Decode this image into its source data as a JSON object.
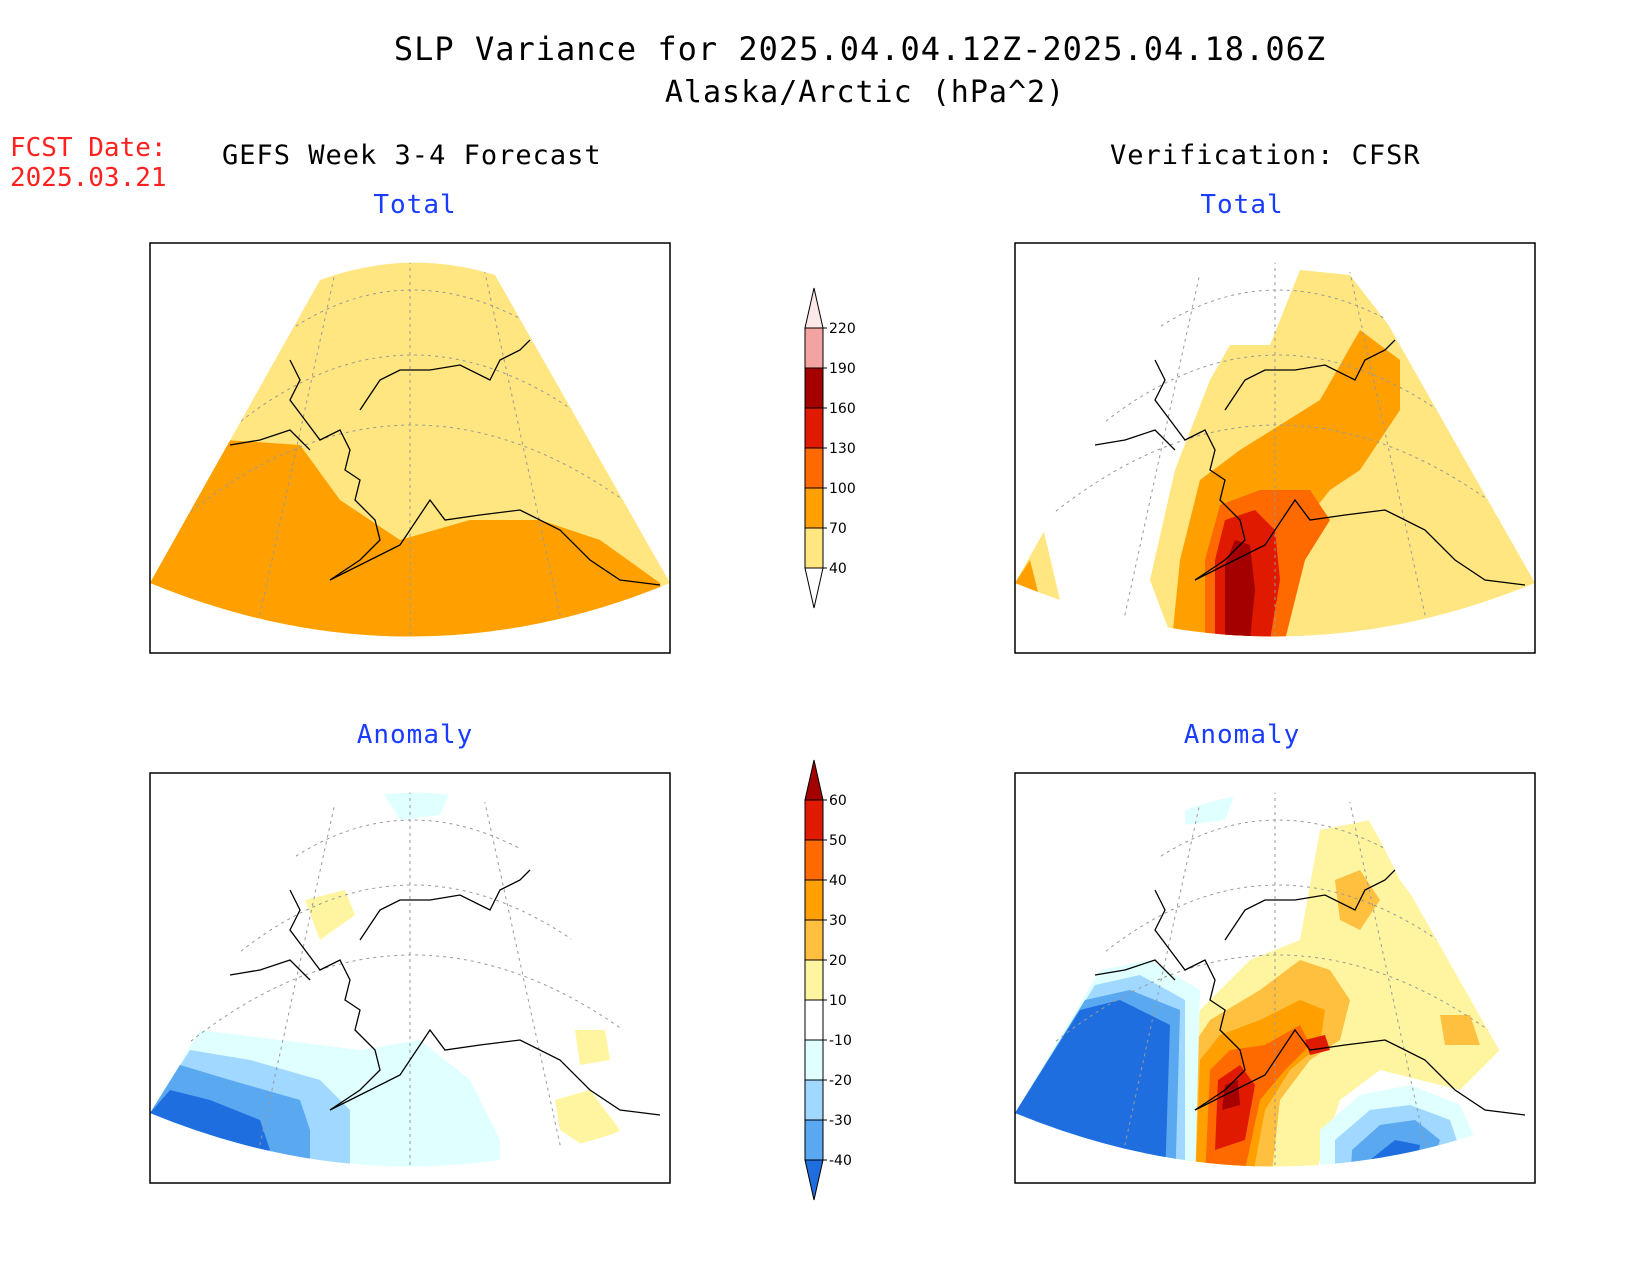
{
  "title": {
    "line1": "SLP Variance for 2025.04.04.12Z-2025.04.18.06Z",
    "line2": "Alaska/Arctic (hPa^2)"
  },
  "forecast_date": {
    "label": "FCST Date:",
    "value": "2025.03.21"
  },
  "columns": {
    "left": "GEFS Week 3-4 Forecast",
    "right": "Verification: CFSR"
  },
  "panels": {
    "top_left": {
      "subtitle": "Total"
    },
    "top_right": {
      "subtitle": "Total"
    },
    "bottom_left": {
      "subtitle": "Anomaly"
    },
    "bottom_right": {
      "subtitle": "Anomaly"
    }
  },
  "colorbars": {
    "total": {
      "labels": [
        "220",
        "190",
        "160",
        "130",
        "100",
        "70",
        "40"
      ],
      "colors": [
        "#fde8e8",
        "#f4a3a3",
        "#a50000",
        "#e01a00",
        "#ff6a00",
        "#ffa000",
        "#ffe680"
      ]
    },
    "anomaly": {
      "labels": [
        "60",
        "50",
        "40",
        "30",
        "20",
        "10",
        "-10",
        "-20",
        "-30",
        "-40"
      ],
      "colors": [
        "#a50000",
        "#e01a00",
        "#ff6a00",
        "#ffa000",
        "#ffc040",
        "#fff5a0",
        "#ffffff",
        "#e0ffff",
        "#a0d8ff",
        "#5aa8f0",
        "#1e6ee0"
      ]
    }
  }
}
